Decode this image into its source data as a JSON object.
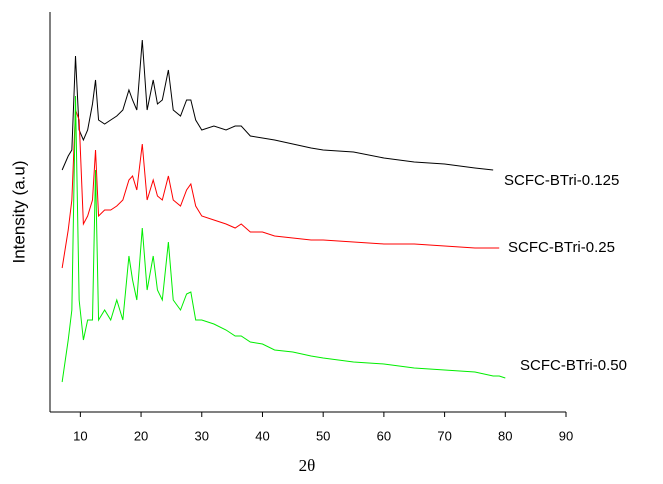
{
  "chart_data": {
    "type": "line",
    "x_label": "2θ",
    "y_label": "Intensity (a.u)",
    "xlim": [
      5,
      90
    ],
    "xticks": [
      10,
      20,
      30,
      40,
      50,
      60,
      70,
      80,
      90
    ],
    "ylim": [
      0,
      100
    ],
    "x": [
      7,
      8,
      8.6,
      9.2,
      9.8,
      10.5,
      11.2,
      12,
      12.5,
      13,
      14,
      15,
      16,
      17,
      18,
      18.6,
      19.3,
      20.2,
      21,
      22,
      22.7,
      23.5,
      24.5,
      25.3,
      26.5,
      27.5,
      28.2,
      29,
      30,
      32,
      34,
      35.5,
      36.5,
      38,
      40,
      42,
      45,
      48,
      50,
      55,
      60,
      65,
      70,
      75,
      78,
      79,
      80
    ],
    "series": [
      {
        "name": "SCFC-BTri-0.125",
        "color": "#000000",
        "values": [
          60.5,
          64,
          65.5,
          89,
          70.5,
          68,
          70.5,
          77,
          83,
          73,
          72,
          73,
          74,
          75.5,
          80.5,
          78,
          75.5,
          93,
          75.5,
          83,
          77,
          78,
          85.5,
          75.5,
          74,
          78,
          78,
          73,
          70.5,
          71.5,
          70.5,
          71.5,
          71.5,
          69,
          68.5,
          68,
          67,
          66,
          65.5,
          65,
          63.5,
          62.5,
          62,
          61,
          60.5,
          null,
          null
        ]
      },
      {
        "name": "SCFC-BTri-0.25",
        "color": "#ff0000",
        "values": [
          36,
          45.5,
          53,
          75.5,
          73,
          47,
          49,
          53,
          65.5,
          49,
          50.5,
          50.5,
          51.5,
          53,
          58,
          59,
          55.5,
          67,
          53,
          58,
          54,
          53,
          59,
          53,
          51.5,
          55.5,
          57,
          51.5,
          49,
          48,
          47,
          46,
          47,
          45,
          45,
          44,
          43.5,
          43,
          43,
          42.5,
          42,
          42,
          41.5,
          41,
          41,
          41,
          null
        ]
      },
      {
        "name": "SCFC-BTri-0.50",
        "color": "#00ee00",
        "values": [
          7.5,
          18,
          25.5,
          79,
          28,
          18,
          23,
          23,
          60.5,
          23,
          25.5,
          23,
          28,
          23,
          39,
          33,
          28,
          46,
          30.5,
          39,
          30.5,
          28,
          42.5,
          28,
          25.5,
          29.5,
          30,
          23,
          23,
          22,
          20.5,
          19,
          19,
          17.5,
          17,
          15.5,
          15,
          14,
          13.5,
          12.5,
          12,
          11,
          10.5,
          10,
          9,
          9,
          8.5
        ]
      }
    ]
  }
}
